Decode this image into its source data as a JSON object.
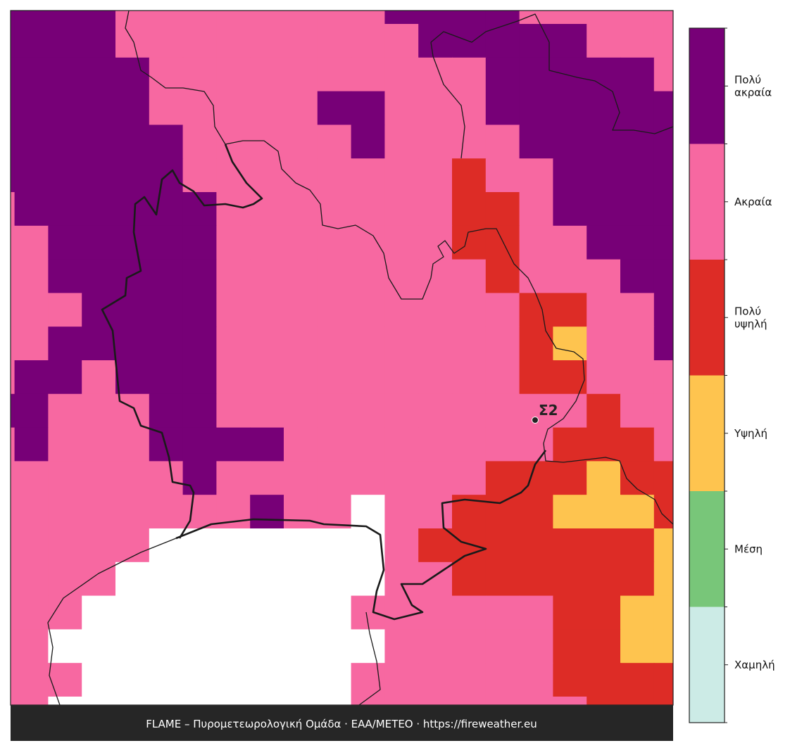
{
  "legend": {
    "items": [
      {
        "label": [
          "Πολύ",
          "ακραία"
        ],
        "color": "#770077"
      },
      {
        "label": [
          "Ακραία"
        ],
        "color": "#f768a1"
      },
      {
        "label": [
          "Πολύ",
          "υψηλή"
        ],
        "color": "#dd2c26"
      },
      {
        "label": [
          "Υψηλή"
        ],
        "color": "#fec44f"
      },
      {
        "label": [
          "Μέση"
        ],
        "color": "#78c679"
      },
      {
        "label": [
          "Χαμηλή"
        ],
        "color": "#ccebe6"
      }
    ]
  },
  "station": {
    "label": "Σ2"
  },
  "footer": {
    "text": "FLAME – Πυρομετεωρολογική Ομάδα · ΕΑΑ/METEO · https://fireweather.eu"
  }
}
